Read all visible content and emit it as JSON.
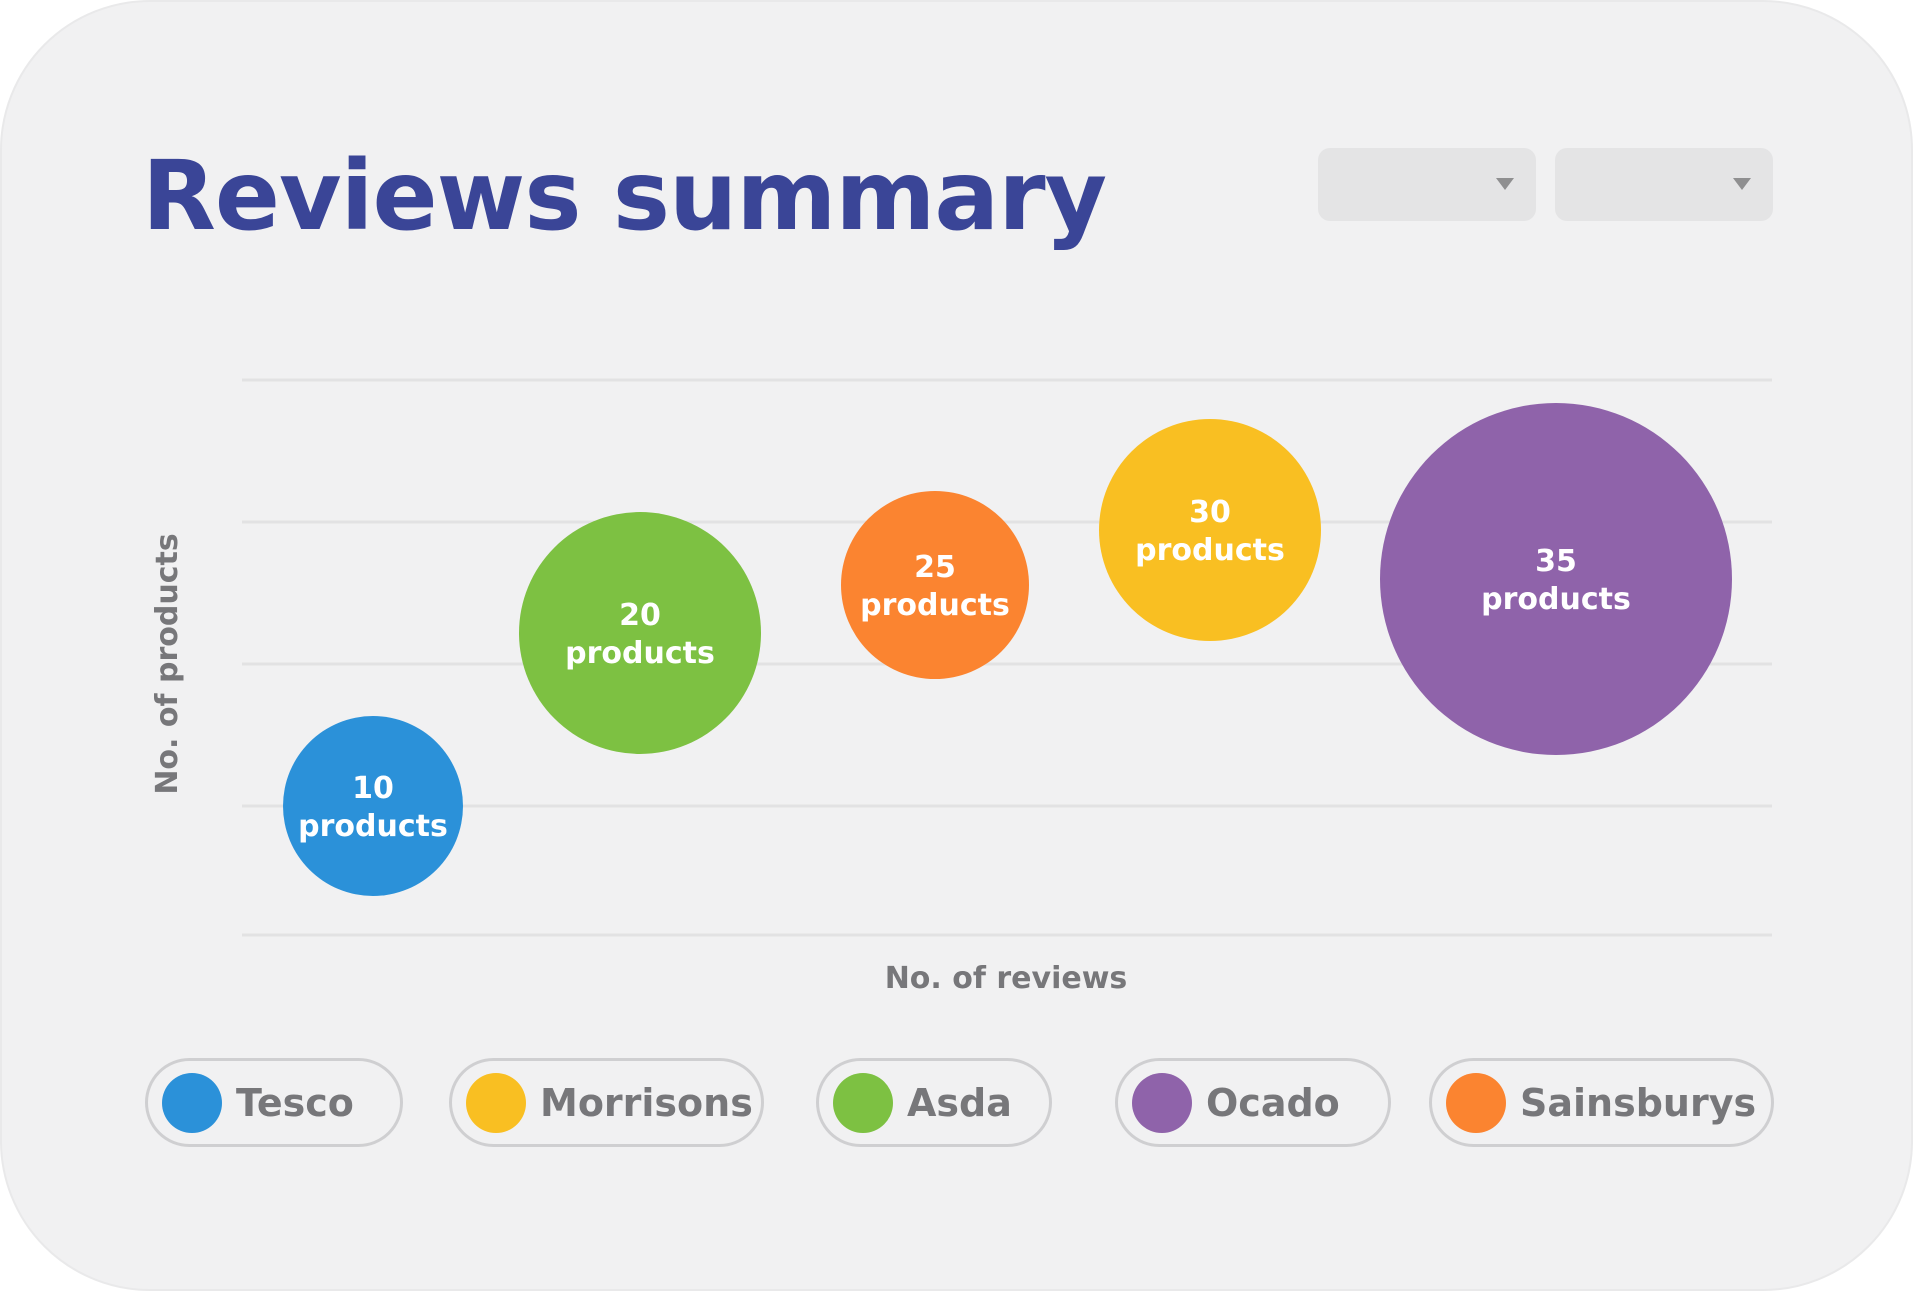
{
  "header": {
    "title": "Reviews summary",
    "dropdowns": [
      {
        "value": ""
      },
      {
        "value": ""
      }
    ]
  },
  "colors": {
    "title": "#3a4597",
    "background": "#f1f1f2",
    "gridline": "#e2e2e3",
    "axis_text": "#77777a"
  },
  "chart_data": {
    "type": "scatter",
    "subtype": "bubble",
    "title": "",
    "xlabel": "No. of reviews",
    "ylabel": "No. of products",
    "grid": true,
    "legend_position": "bottom",
    "series": [
      {
        "name": "Tesco",
        "products": 10,
        "label": "10 products",
        "color": "#2b91d9"
      },
      {
        "name": "Asda",
        "products": 20,
        "label": "20 products",
        "color": "#7dc142"
      },
      {
        "name": "Sainsburys",
        "products": 25,
        "label": "25 products",
        "color": "#fb8430"
      },
      {
        "name": "Morrisons",
        "products": 30,
        "label": "30 products",
        "color": "#f9bf22"
      },
      {
        "name": "Ocado",
        "products": 35,
        "label": "35 products",
        "color": "#8f63aa"
      }
    ]
  },
  "legend": [
    {
      "label": "Tesco",
      "color": "#2b91d9"
    },
    {
      "label": "Morrisons",
      "color": "#f9bf22"
    },
    {
      "label": "Asda",
      "color": "#7dc142"
    },
    {
      "label": "Ocado",
      "color": "#8f63aa"
    },
    {
      "label": "Sainsburys",
      "color": "#fb8430"
    }
  ]
}
